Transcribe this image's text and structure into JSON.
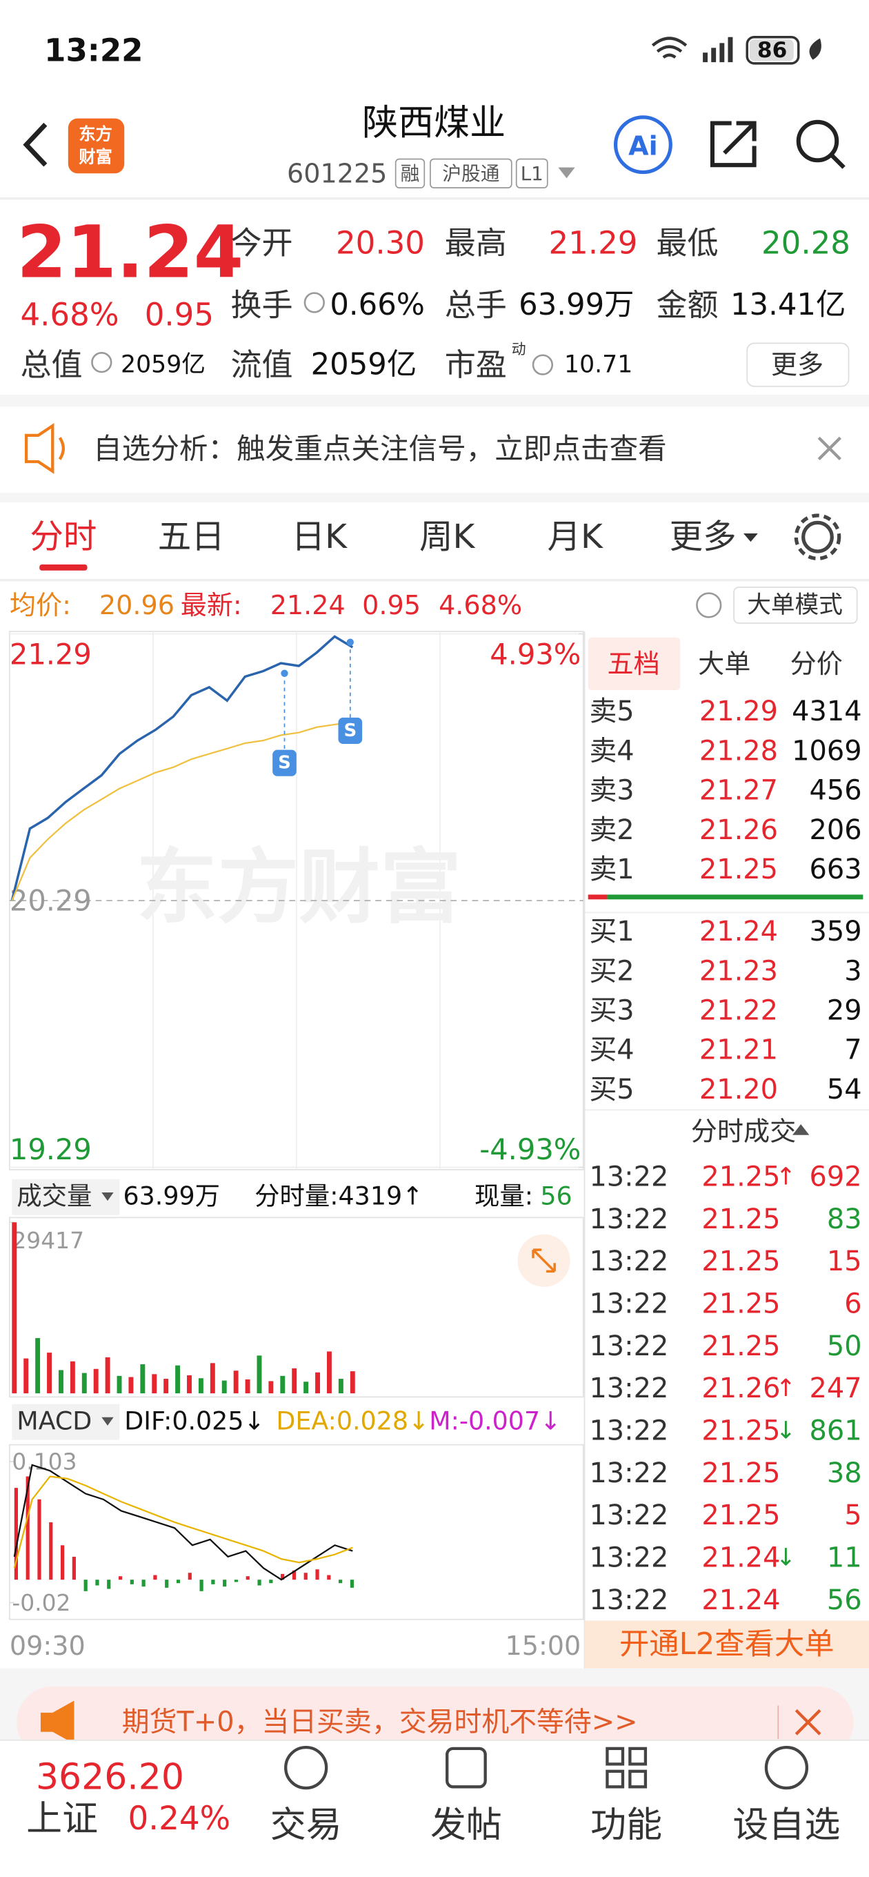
{
  "status_bar": {
    "time": "13:22",
    "battery": "86"
  },
  "header": {
    "logo": [
      "东方",
      "财富"
    ],
    "title": "陕西煤业",
    "code": "601225",
    "tags": [
      "融",
      "沪股通",
      "L1"
    ],
    "ai": "Ai"
  },
  "quote": {
    "price": "21.24",
    "change_pct": "4.68%",
    "change": "0.95",
    "open": {
      "label": "今开",
      "value": "20.30"
    },
    "high": {
      "label": "最高",
      "value": "21.29"
    },
    "low": {
      "label": "最低",
      "value": "20.28"
    },
    "turnover": {
      "label": "换手",
      "value": "0.66%"
    },
    "volume": {
      "label": "总手",
      "value": "63.99万"
    },
    "amount": {
      "label": "金额",
      "value": "13.41亿"
    },
    "market_cap": {
      "label": "总值",
      "value": "2059亿"
    },
    "float_cap": {
      "label": "流值",
      "value": "2059亿"
    },
    "pe": {
      "label": "市盈",
      "sup": "动",
      "value": "10.71"
    },
    "more": "更多"
  },
  "notice": "自选分析：触发重点关注信号，立即点击查看",
  "tabs": [
    "分时",
    "五日",
    "日K",
    "周K",
    "月K",
    "更多"
  ],
  "info_bar": {
    "avg_label": "均价:",
    "avg": "20.96",
    "last_label": "最新:",
    "last": "21.24",
    "change": "0.95",
    "change_pct": "4.68%",
    "mode": "大单模式"
  },
  "watermark": "东方财富",
  "order_book": {
    "tabs": [
      "五档",
      "大单",
      "分价"
    ],
    "asks": [
      {
        "label": "卖5",
        "price": "21.29",
        "qty": "4314"
      },
      {
        "label": "卖4",
        "price": "21.28",
        "qty": "1069"
      },
      {
        "label": "卖3",
        "price": "21.27",
        "qty": "456"
      },
      {
        "label": "卖2",
        "price": "21.26",
        "qty": "206"
      },
      {
        "label": "卖1",
        "price": "21.25",
        "qty": "663"
      }
    ],
    "bids": [
      {
        "label": "买1",
        "price": "21.24",
        "qty": "359"
      },
      {
        "label": "买2",
        "price": "21.23",
        "qty": "3"
      },
      {
        "label": "买3",
        "price": "21.22",
        "qty": "29"
      },
      {
        "label": "买4",
        "price": "21.21",
        "qty": "7"
      },
      {
        "label": "买5",
        "price": "21.20",
        "qty": "54"
      }
    ]
  },
  "trades": {
    "title": "分时成交",
    "rows": [
      {
        "time": "13:22",
        "price": "21.25",
        "arrow": "↑",
        "qty": "692",
        "color": "#e5262e"
      },
      {
        "time": "13:22",
        "price": "21.25",
        "qty": "83",
        "color": "#1f9a36"
      },
      {
        "time": "13:22",
        "price": "21.25",
        "qty": "15",
        "color": "#e5262e"
      },
      {
        "time": "13:22",
        "price": "21.25",
        "qty": "6",
        "color": "#e5262e"
      },
      {
        "time": "13:22",
        "price": "21.25",
        "qty": "50",
        "color": "#1f9a36"
      },
      {
        "time": "13:22",
        "price": "21.26",
        "arrow": "↑",
        "qty": "247",
        "color": "#e5262e"
      },
      {
        "time": "13:22",
        "price": "21.25",
        "arrow": "↓",
        "qty": "861",
        "color": "#1f9a36"
      },
      {
        "time": "13:22",
        "price": "21.25",
        "qty": "38",
        "color": "#1f9a36"
      },
      {
        "time": "13:22",
        "price": "21.25",
        "qty": "5",
        "color": "#e5262e"
      },
      {
        "time": "13:22",
        "price": "21.24",
        "arrow": "↓",
        "qty": "11",
        "color": "#1f9a36"
      },
      {
        "time": "13:22",
        "price": "21.24",
        "qty": "56",
        "color": "#1f9a36"
      }
    ],
    "l2": "开通L2查看大单"
  },
  "volume_bar": {
    "label": "成交量",
    "total": "63.99万",
    "minute": "分时量:4319↑",
    "current_label": "现量:",
    "current": "56"
  },
  "macd_bar": {
    "label": "MACD",
    "dif": "DIF:0.025↓",
    "dea": "DEA:0.028↓",
    "m": "M:-0.007↓"
  },
  "time_axis": [
    "09:30",
    "15:00"
  ],
  "chart_data": [
    {
      "type": "line",
      "ylim": [
        19.29,
        21.29
      ],
      "yticks": [
        21.29,
        20.29,
        19.29
      ],
      "y2lim": [
        -4.93,
        4.93
      ],
      "y2ticks": [
        {
          "value": 4.93,
          "label": "4.93%"
        },
        {
          "value": -4.93,
          "label": "-4.93%"
        }
      ],
      "markers": [
        "S",
        "S"
      ],
      "series": [
        {
          "color": "#2a64ad",
          "values": [
            20.29,
            20.56,
            20.6,
            20.66,
            20.71,
            20.76,
            20.84,
            20.89,
            20.93,
            20.98,
            21.06,
            21.09,
            21.04,
            21.13,
            21.15,
            21.18,
            21.17,
            21.22,
            21.28,
            21.24
          ]
        },
        {
          "color": "#f0c040",
          "values": [
            20.29,
            20.45,
            20.52,
            20.58,
            20.63,
            20.67,
            20.71,
            20.74,
            20.77,
            20.79,
            20.82,
            20.84,
            20.86,
            20.88,
            20.89,
            20.91,
            20.92,
            20.94,
            20.95,
            20.96
          ]
        }
      ]
    },
    {
      "type": "bar",
      "ylim": [
        0,
        29417
      ],
      "yticks": [
        29417
      ],
      "values": [
        29417,
        6000,
        9500,
        7000,
        4000,
        5500,
        3500,
        4200,
        6200,
        3000,
        2800,
        5000,
        3300,
        2500,
        4800,
        3100,
        2600,
        5200,
        2200,
        3900,
        2400,
        6500,
        2100,
        3000,
        4300,
        2000,
        3600,
        7200,
        2500,
        3800
      ],
      "colors": [
        "#e5262e",
        "#e5262e",
        "#1f9a36",
        "#e5262e",
        "#1f9a36",
        "#e5262e",
        "#1f9a36",
        "#e5262e",
        "#e5262e",
        "#1f9a36",
        "#e5262e",
        "#1f9a36",
        "#e5262e",
        "#e5262e",
        "#1f9a36",
        "#e5262e",
        "#1f9a36",
        "#e5262e",
        "#1f9a36",
        "#e5262e",
        "#e5262e",
        "#1f9a36",
        "#e5262e",
        "#1f9a36",
        "#e5262e",
        "#1f9a36",
        "#e5262e",
        "#e5262e",
        "#1f9a36",
        "#e5262e"
      ]
    },
    {
      "type": "macd",
      "ylim": [
        -0.0325,
        0.1155
      ],
      "yticks": [
        0.103,
        -0.02
      ],
      "lines": [
        {
          "color": "#111111",
          "values": [
            0.02,
            0.1,
            0.095,
            0.085,
            0.075,
            0.07,
            0.06,
            0.055,
            0.05,
            0.045,
            0.03,
            0.035,
            0.02,
            0.025,
            0.01,
            0.0,
            0.01,
            0.02,
            0.03,
            0.025
          ]
        },
        {
          "color": "#e8b400",
          "values": [
            0.01,
            0.07,
            0.09,
            0.088,
            0.082,
            0.075,
            0.068,
            0.062,
            0.056,
            0.05,
            0.045,
            0.04,
            0.035,
            0.03,
            0.025,
            0.018,
            0.015,
            0.018,
            0.022,
            0.028
          ]
        }
      ],
      "bars": {
        "up_color": "#e5262e",
        "down_color": "#1f9a36",
        "values": [
          0.08,
          0.09,
          0.07,
          0.05,
          0.03,
          0.02,
          -0.01,
          -0.005,
          -0.008,
          0.003,
          -0.004,
          -0.006,
          0.004,
          -0.007,
          -0.003,
          0.006,
          -0.01,
          -0.004,
          -0.006,
          -0.002,
          0.003,
          -0.005,
          -0.003,
          0.005,
          0.008,
          0.006,
          0.009,
          0.004,
          -0.003,
          -0.007
        ]
      }
    }
  ],
  "ad": "期货T+0，当日买卖，交易时机不等待>>",
  "bottom_nav": {
    "index_value": "3626.20",
    "index_name": "上证",
    "index_change": "0.24%",
    "items": [
      "交易",
      "发帖",
      "功能",
      "设自选"
    ]
  }
}
